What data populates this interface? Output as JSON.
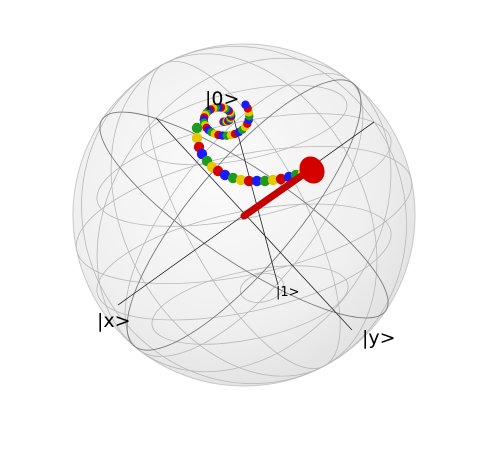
{
  "diagram": {
    "type": "bloch-sphere",
    "labels": {
      "zero": "|0>",
      "one": "|1>",
      "x": "|x>",
      "y": "|y>"
    },
    "colors": {
      "sphere_fill": "#eeeeee",
      "wire": "#b8b8b8",
      "axis": "#222222",
      "vector": "#c40000",
      "point_cycle": [
        "#d40000",
        "#1a1aff",
        "#1e9a1e",
        "#e6c800"
      ]
    }
  }
}
